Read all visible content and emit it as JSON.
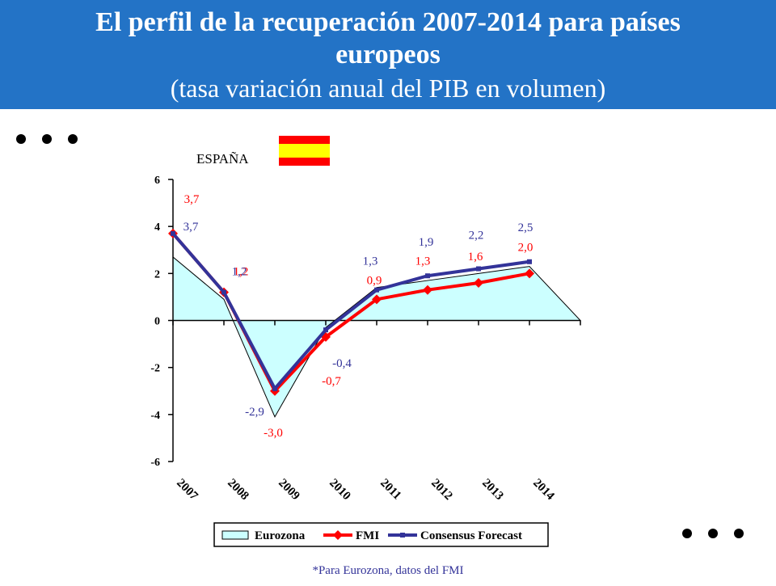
{
  "chart_data": {
    "type": "line",
    "title": "El perfil de la recuperación 2007-2014 para países europeos",
    "subtitle": "(tasa variación anual del PIB en volumen)",
    "annotation": "ESPAÑA",
    "note": "*Para Eurozona, datos del FMI",
    "categories": [
      "2007",
      "2008",
      "2009",
      "2010",
      "2011",
      "2012",
      "2013",
      "2014"
    ],
    "ylim": [
      -6,
      6
    ],
    "yticks": [
      -6,
      -4,
      -2,
      0,
      2,
      4,
      6
    ],
    "series": [
      {
        "name": "Eurozona",
        "type": "area",
        "color": "#ccffff",
        "values": [
          2.7,
          0.9,
          -4.1,
          -0.3,
          1.4,
          1.7,
          2.0,
          2.3
        ]
      },
      {
        "name": "FMI",
        "color": "#ff0000",
        "values": [
          3.7,
          1.2,
          -3.0,
          -0.7,
          0.9,
          1.3,
          1.6,
          2.0
        ],
        "value_labels": [
          "3,7",
          "1,2",
          "-3,0",
          "-0,7",
          "0,9",
          "1,3",
          "1,6",
          "2,0"
        ]
      },
      {
        "name": "Consensus Forecast",
        "color": "#333399",
        "values": [
          3.7,
          1.2,
          -2.9,
          -0.4,
          1.3,
          1.9,
          2.2,
          2.5
        ],
        "value_labels": [
          "3,7",
          "1,2",
          "-2,9",
          "-0,4",
          "1,3",
          "1,9",
          "2,2",
          "2,5"
        ]
      }
    ]
  }
}
